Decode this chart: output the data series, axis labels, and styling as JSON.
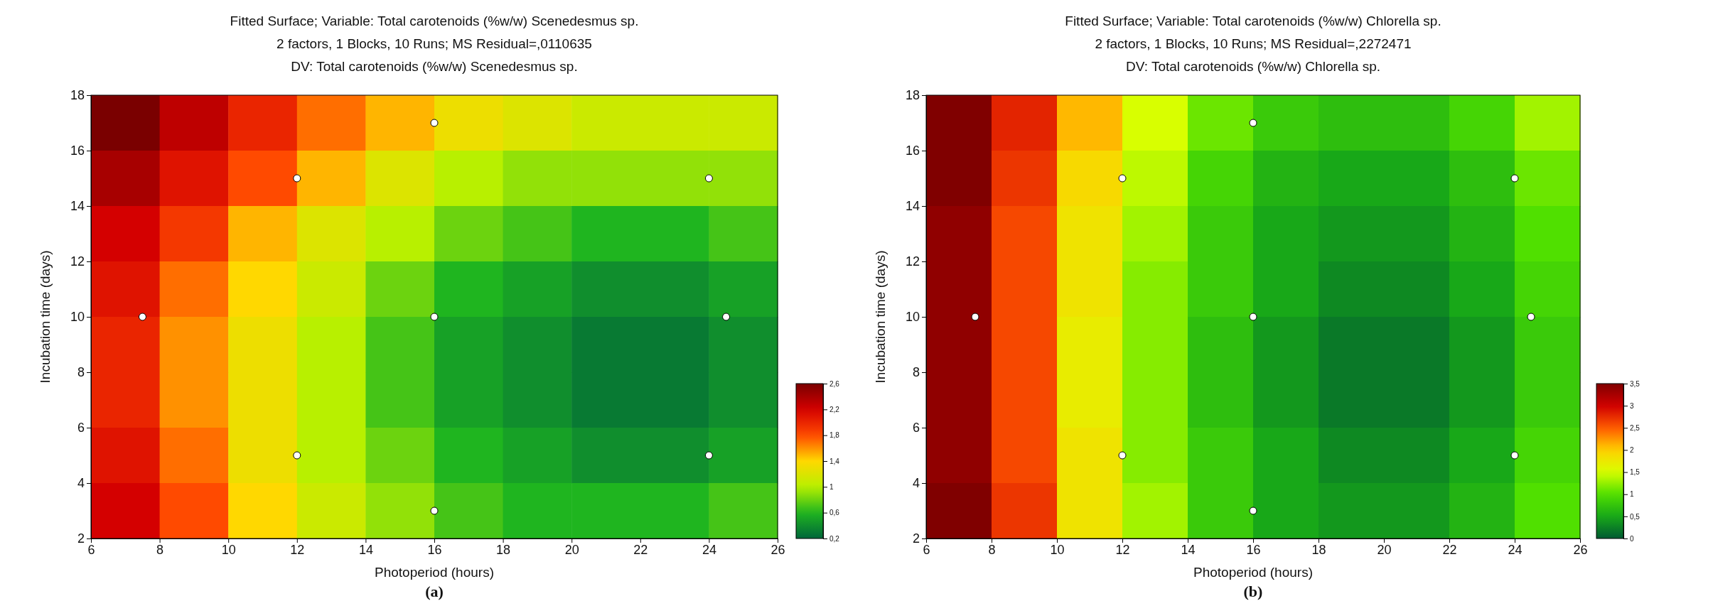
{
  "chart_data": [
    {
      "type": "heatmap",
      "title": "Fitted Surface; Variable: Total carotenoids (%w/w) Scenedesmus sp.",
      "subtitle": "2 factors, 1 Blocks, 10 Runs; MS Residual=,0110635\nDV: Total carotenoids (%w/w) Scenedesmus sp.",
      "xlabel": "Photoperiod (hours)",
      "ylabel": "Incubation time (days)",
      "annotations": [
        "(a)"
      ],
      "x": [
        7,
        9,
        11,
        13,
        15,
        17,
        19,
        21,
        23,
        25
      ],
      "xlim": [
        6,
        26
      ],
      "xticks": [
        6,
        8,
        10,
        12,
        14,
        16,
        18,
        20,
        22,
        24,
        26
      ],
      "ylim": [
        2,
        18
      ],
      "yticks": [
        2,
        4,
        6,
        8,
        10,
        12,
        14,
        16,
        18
      ],
      "cells": [
        [
          2.6,
          2.3,
          2.0,
          1.7,
          1.5,
          1.3,
          1.2,
          1.1,
          1.1,
          1.1
        ],
        [
          2.4,
          2.1,
          1.8,
          1.5,
          1.2,
          1.0,
          0.9,
          0.9,
          0.9,
          0.9
        ],
        [
          2.2,
          1.9,
          1.5,
          1.2,
          1.0,
          0.8,
          0.7,
          0.6,
          0.6,
          0.7
        ],
        [
          2.1,
          1.7,
          1.4,
          1.1,
          0.8,
          0.6,
          0.5,
          0.4,
          0.4,
          0.5
        ],
        [
          2.0,
          1.6,
          1.3,
          1.0,
          0.7,
          0.5,
          0.4,
          0.3,
          0.3,
          0.4
        ],
        [
          2.0,
          1.6,
          1.3,
          1.0,
          0.7,
          0.5,
          0.4,
          0.3,
          0.3,
          0.4
        ],
        [
          2.1,
          1.7,
          1.3,
          1.0,
          0.8,
          0.6,
          0.5,
          0.4,
          0.4,
          0.5
        ],
        [
          2.2,
          1.8,
          1.4,
          1.1,
          0.9,
          0.7,
          0.6,
          0.6,
          0.6,
          0.7
        ]
      ],
      "clim": [
        0.2,
        2.6
      ],
      "cticks": [
        {
          "value": 0.2,
          "label": "0,2"
        },
        {
          "value": 0.6,
          "label": "0,6"
        },
        {
          "value": 1,
          "label": "1"
        },
        {
          "value": 1.4,
          "label": "1,4"
        },
        {
          "value": 1.8,
          "label": "1,8"
        },
        {
          "value": 2.2,
          "label": "2,2"
        },
        {
          "value": 2.6,
          "label": "2,6"
        }
      ],
      "colors": [
        "#00663a",
        "#1fb51f",
        "#b8f000",
        "#ffd800",
        "#ff4a00",
        "#d40000",
        "#7a0000"
      ],
      "series": [
        {
          "type": "scatter",
          "color": "#ffffff",
          "x": [
            7.5,
            12,
            12,
            16,
            16,
            16,
            24,
            24,
            24.5
          ],
          "values": [
            10,
            15,
            5,
            17,
            10,
            3,
            15,
            5,
            10
          ]
        }
      ]
    },
    {
      "type": "heatmap",
      "title": "Fitted Surface; Variable: Total carotenoids (%w/w) Chlorella sp.",
      "subtitle": "2 factors, 1 Blocks, 10 Runs; MS Residual=,2272471\nDV: Total carotenoids (%w/w) Chlorella sp.",
      "xlabel": "Photoperiod (hours)",
      "ylabel": "Incubation time (days)",
      "annotations": [
        "(b)"
      ],
      "x": [
        7,
        9,
        11,
        13,
        15,
        17,
        19,
        21,
        23,
        25
      ],
      "xlim": [
        6,
        26
      ],
      "xticks": [
        6,
        8,
        10,
        12,
        14,
        16,
        18,
        20,
        22,
        24,
        26
      ],
      "ylim": [
        2,
        18
      ],
      "yticks": [
        2,
        4,
        6,
        8,
        10,
        12,
        14,
        16,
        18
      ],
      "cells": [
        [
          3.5,
          2.8,
          2.1,
          1.5,
          1.1,
          0.8,
          0.7,
          0.7,
          0.9,
          1.3
        ],
        [
          3.5,
          2.7,
          1.9,
          1.4,
          0.9,
          0.6,
          0.5,
          0.5,
          0.7,
          1.1
        ],
        [
          3.4,
          2.6,
          1.8,
          1.3,
          0.8,
          0.5,
          0.4,
          0.4,
          0.6,
          1.0
        ],
        [
          3.4,
          2.6,
          1.8,
          1.2,
          0.8,
          0.5,
          0.3,
          0.3,
          0.5,
          0.9
        ],
        [
          3.4,
          2.6,
          1.7,
          1.2,
          0.7,
          0.4,
          0.2,
          0.2,
          0.4,
          0.8
        ],
        [
          3.4,
          2.6,
          1.7,
          1.2,
          0.7,
          0.4,
          0.2,
          0.2,
          0.4,
          0.8
        ],
        [
          3.4,
          2.6,
          1.8,
          1.2,
          0.8,
          0.5,
          0.3,
          0.3,
          0.5,
          0.9
        ],
        [
          3.5,
          2.7,
          1.8,
          1.3,
          0.8,
          0.5,
          0.4,
          0.4,
          0.6,
          1.0
        ]
      ],
      "clim": [
        0,
        3.5
      ],
      "cticks": [
        {
          "value": 0,
          "label": "0"
        },
        {
          "value": 0.5,
          "label": "0,5"
        },
        {
          "value": 1,
          "label": "1"
        },
        {
          "value": 1.5,
          "label": "1,5"
        },
        {
          "value": 2,
          "label": "2"
        },
        {
          "value": 2.5,
          "label": "2,5"
        },
        {
          "value": 3,
          "label": "3"
        },
        {
          "value": 3.5,
          "label": "3,5"
        }
      ],
      "colors": [
        "#005a32",
        "#18a818",
        "#50e000",
        "#d8ff00",
        "#ffd000",
        "#ff5a00",
        "#d00000",
        "#800000"
      ],
      "series": [
        {
          "type": "scatter",
          "color": "#ffffff",
          "x": [
            7.5,
            12,
            12,
            16,
            16,
            16,
            24,
            24,
            24.5
          ],
          "values": [
            10,
            15,
            5,
            17,
            10,
            3,
            15,
            5,
            10
          ]
        }
      ]
    }
  ]
}
